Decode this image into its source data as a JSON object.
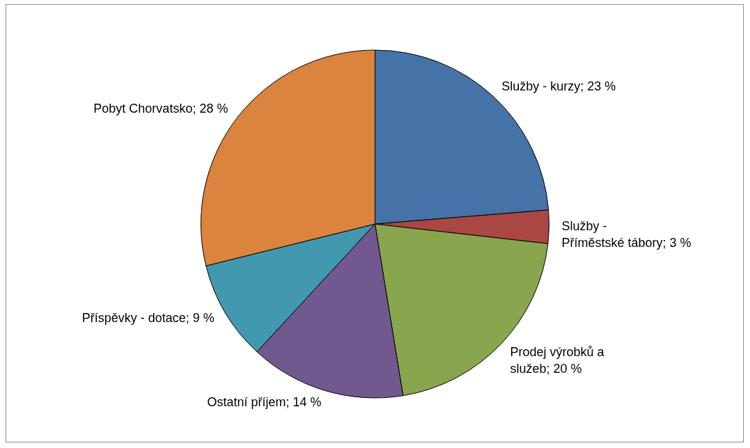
{
  "chart_data": {
    "type": "pie",
    "categories": [
      "Služby - kurzy",
      "Služby - Příměstské tábory",
      "Prodej výrobků a služeb",
      "Ostatní příjem",
      "Příspěvky - dotace",
      "Pobyt Chorvatsko"
    ],
    "values": [
      23,
      3,
      20,
      14,
      9,
      28
    ],
    "value_labels": [
      "23 %",
      "3 %",
      "20 %",
      "14 %",
      "9 %",
      "28 %"
    ],
    "colors": [
      "#4572a7",
      "#aa4643",
      "#89a54e",
      "#71588f",
      "#4198af",
      "#db843d"
    ]
  }
}
